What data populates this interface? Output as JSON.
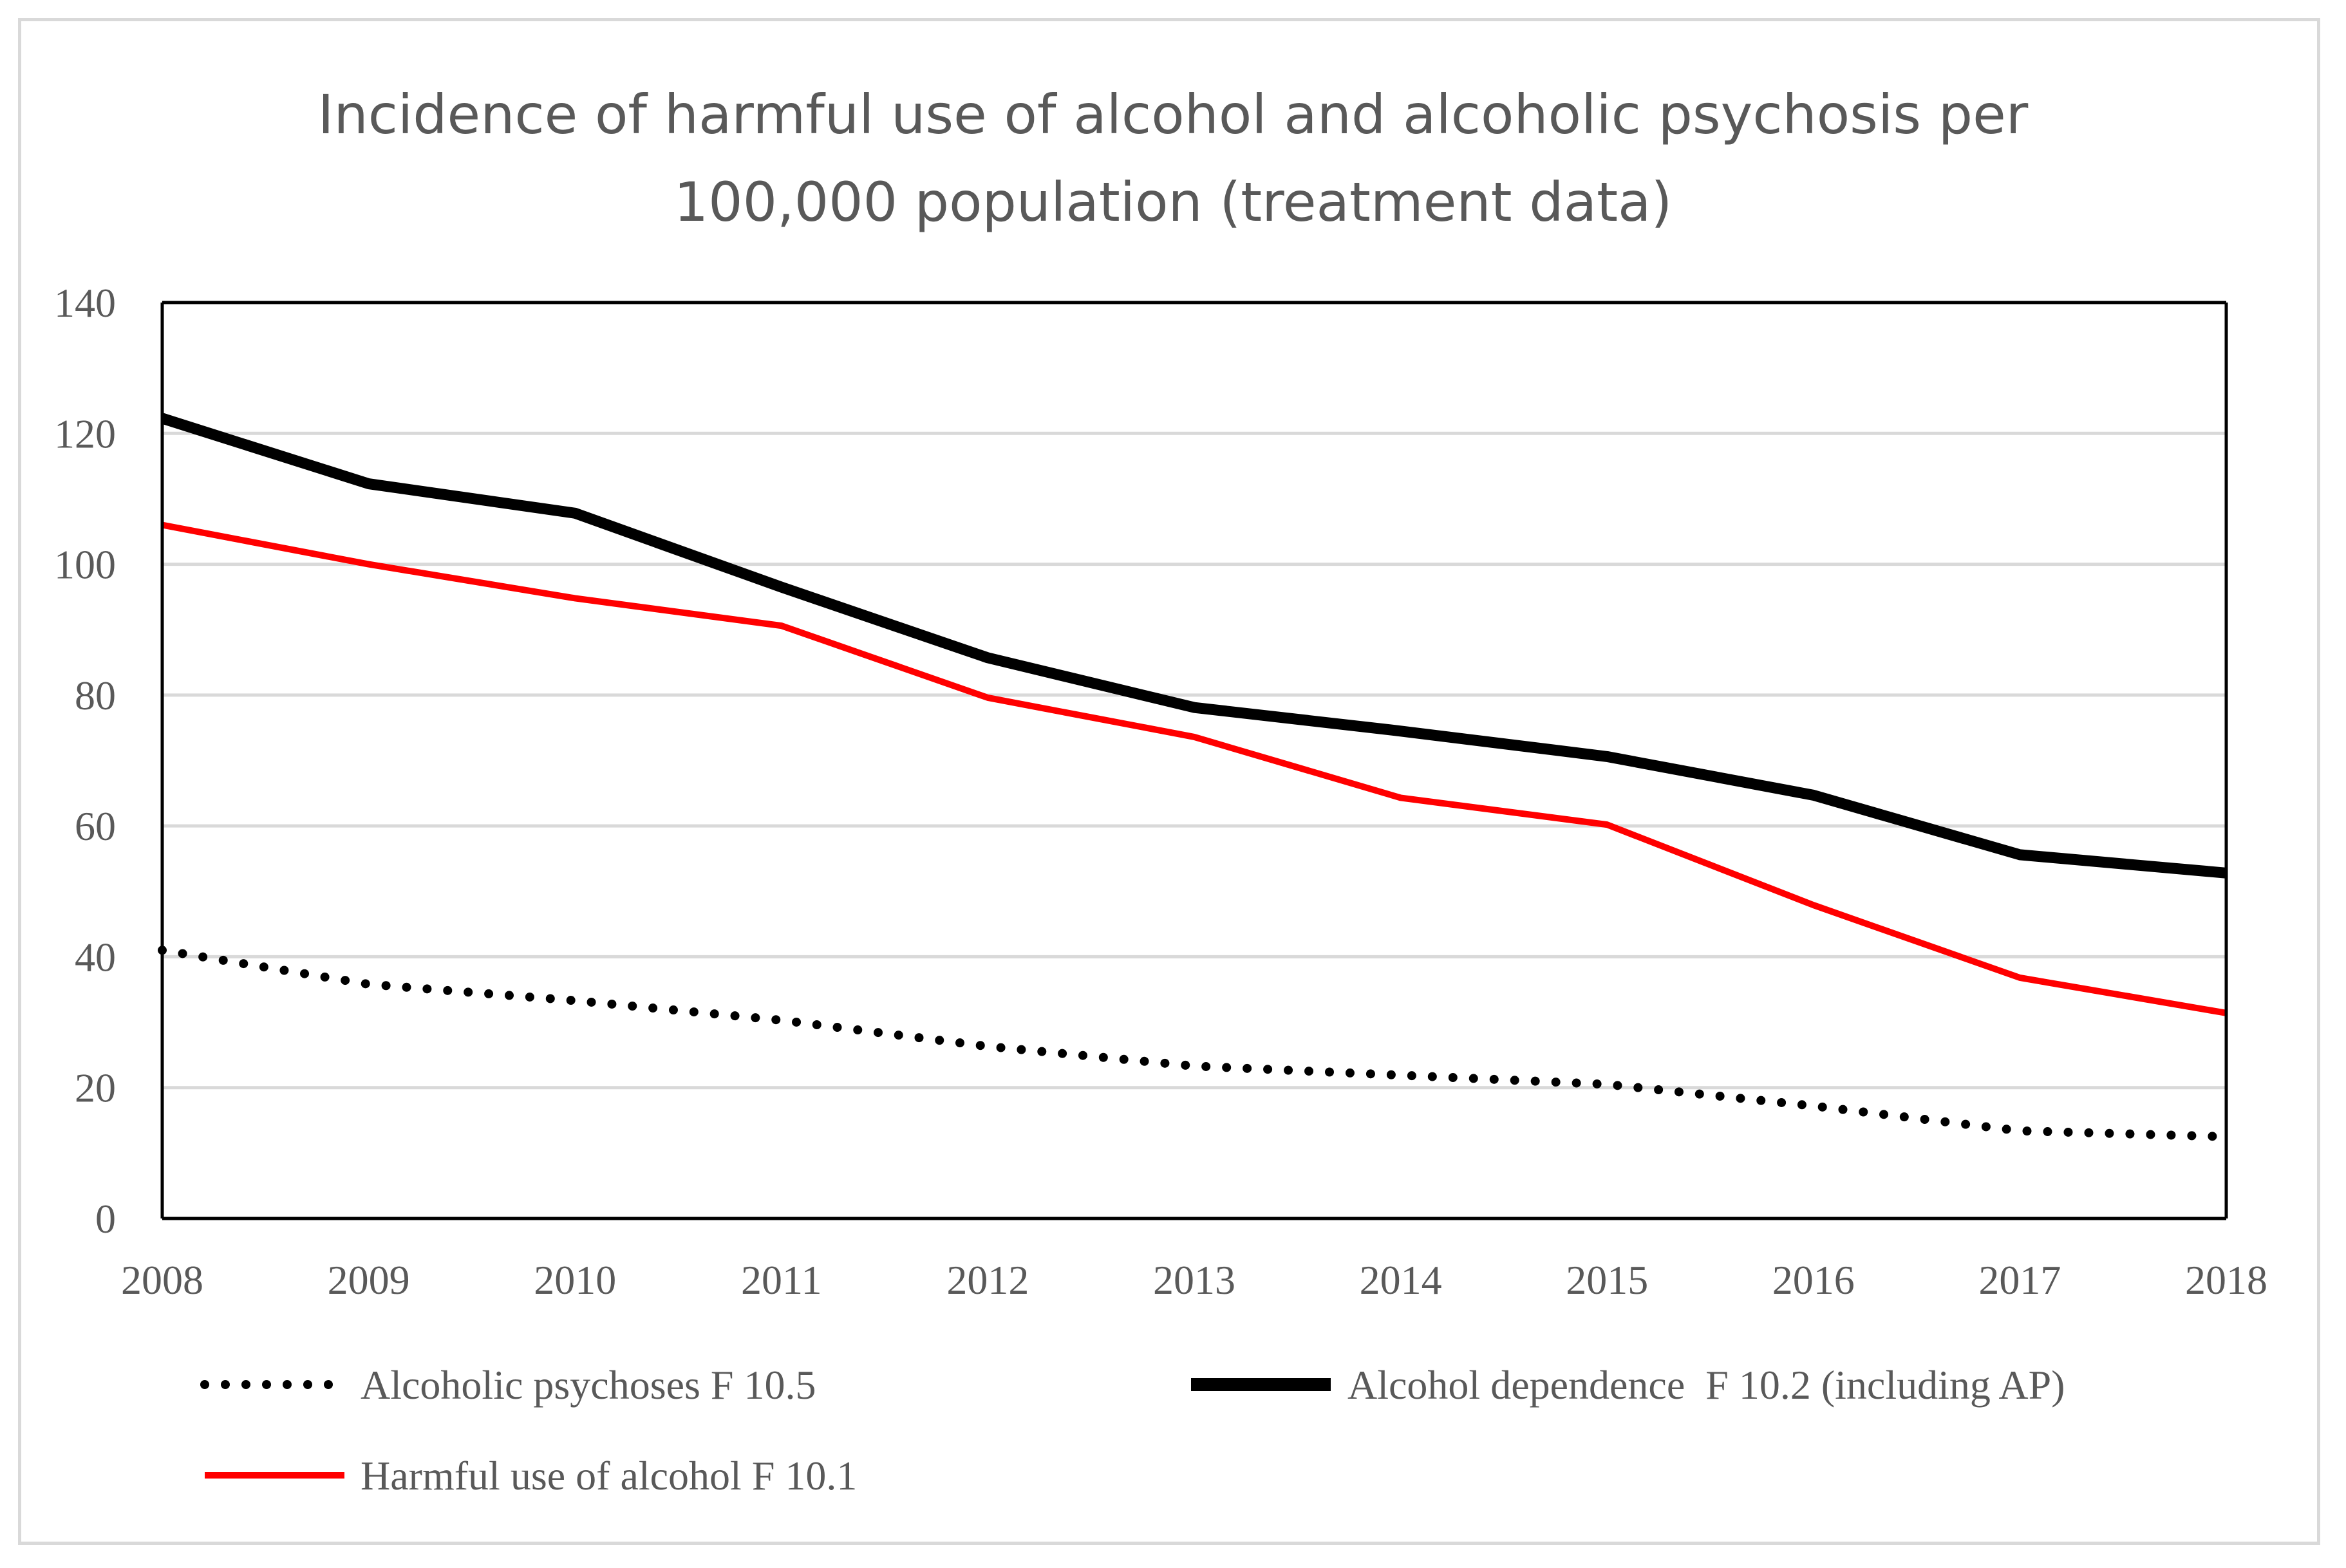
{
  "chart_data": {
    "type": "line",
    "title": "Incidence of harmful use of alcohol and alcoholic psychosis per 100,000 population (treatment data)",
    "title_lines": [
      "Incidence of harmful use of alcohol and alcoholic psychosis per",
      "100,000 population (treatment data)"
    ],
    "xlabel": "",
    "ylabel": "",
    "x": [
      "2008",
      "2009",
      "2010",
      "2011",
      "2012",
      "2013",
      "2014",
      "2015",
      "2016",
      "2017",
      "2018"
    ],
    "ylim": [
      0,
      140
    ],
    "yticks": [
      "0",
      "20",
      "40",
      "60",
      "80",
      "100",
      "120",
      "140"
    ],
    "grid": true,
    "legend_position": "bottom",
    "series": [
      {
        "name": "Alcoholic psychoses F 10.5",
        "style": "dotted",
        "color": "#000000",
        "values": [
          41,
          35.8,
          33.3,
          30.3,
          26.3,
          23.3,
          21.9,
          20.5,
          17.2,
          13.4,
          12.5
        ]
      },
      {
        "name": "Alcohol dependence  F 10.2 (including AP)",
        "style": "solid-thick",
        "color": "#000000",
        "values": [
          122.3,
          112.3,
          107.8,
          96.5,
          85.7,
          78.1,
          74.5,
          70.6,
          64.7,
          55.6,
          52.8
        ]
      },
      {
        "name": "Harmful use of alcohol F 10.1",
        "style": "solid",
        "color": "#ff0000",
        "values": [
          106,
          100,
          94.8,
          90.6,
          79.6,
          73.6,
          64.3,
          60.2,
          47.9,
          36.8,
          31.4
        ]
      }
    ]
  }
}
